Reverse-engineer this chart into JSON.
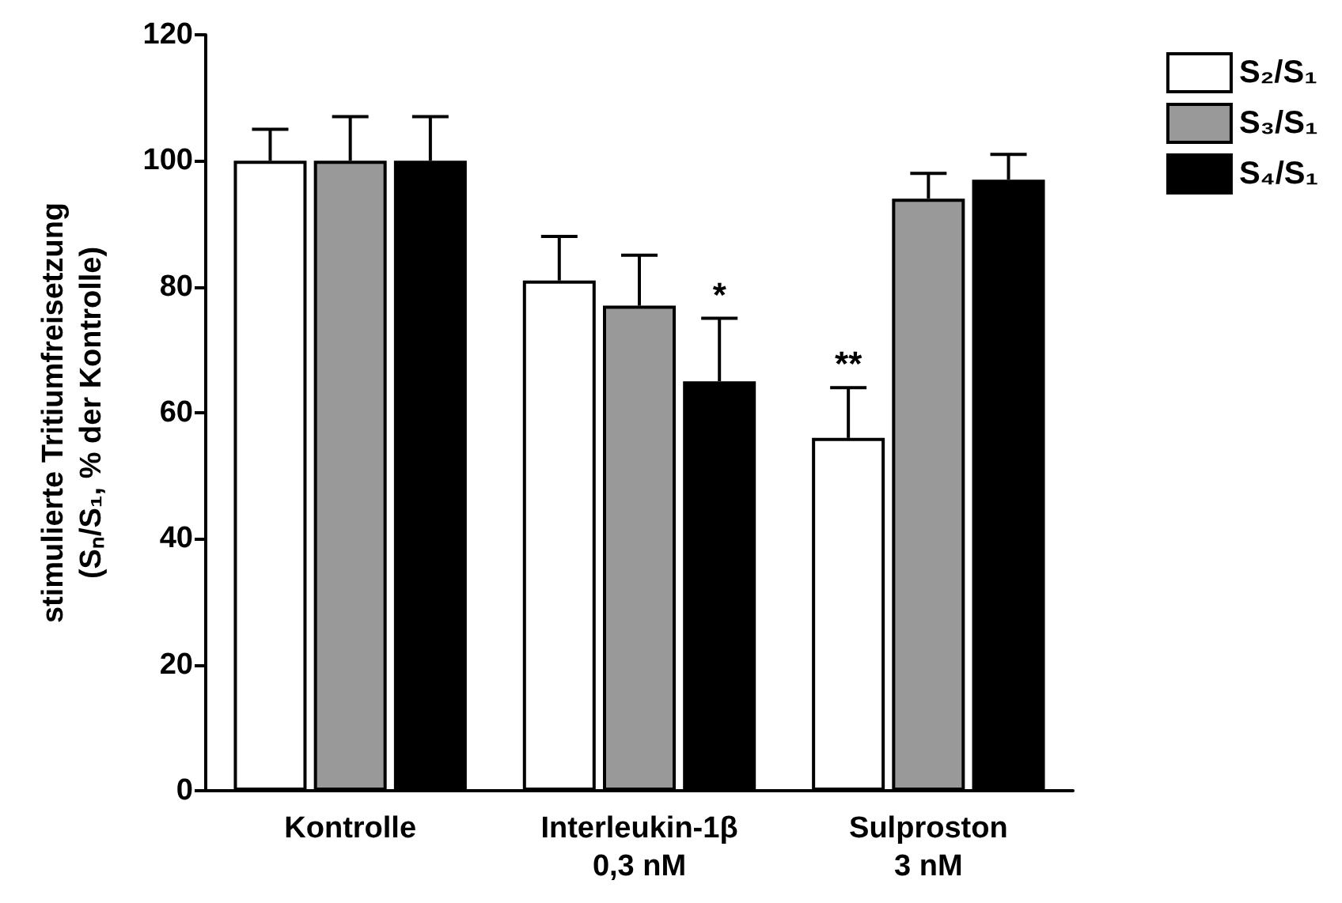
{
  "chart_data": {
    "type": "bar",
    "ylabel": "stimulierte Tritiumfreisetzung\n(Sₙ/S₁, % der Kontrolle)",
    "categories": [
      "Kontrolle",
      "Interleukin-1β\n0,3 nM",
      "Sulproston\n3 nM"
    ],
    "series": [
      {
        "name": "S₂/S₁",
        "color": "#ffffff",
        "values": [
          100,
          81,
          56
        ],
        "errors": [
          [
            100,
            105
          ],
          [
            81,
            88
          ],
          [
            56,
            64
          ]
        ],
        "value_labels": [
          null,
          null,
          "**"
        ]
      },
      {
        "name": "S₃/S₁",
        "color": "#999999",
        "values": [
          100,
          77,
          94
        ],
        "errors": [
          [
            100,
            107
          ],
          [
            77,
            85
          ],
          [
            94,
            98
          ]
        ]
      },
      {
        "name": "S₄/S₁",
        "color": "#000000",
        "values": [
          100,
          65,
          97
        ],
        "errors": [
          [
            100,
            107
          ],
          [
            65,
            75
          ],
          [
            97,
            101
          ]
        ],
        "value_labels": [
          null,
          "*",
          null
        ]
      }
    ],
    "ylim": [
      0,
      120
    ],
    "yticks": [
      0,
      20,
      40,
      60,
      80,
      100,
      120
    ],
    "grid": false,
    "legend": "top right"
  }
}
